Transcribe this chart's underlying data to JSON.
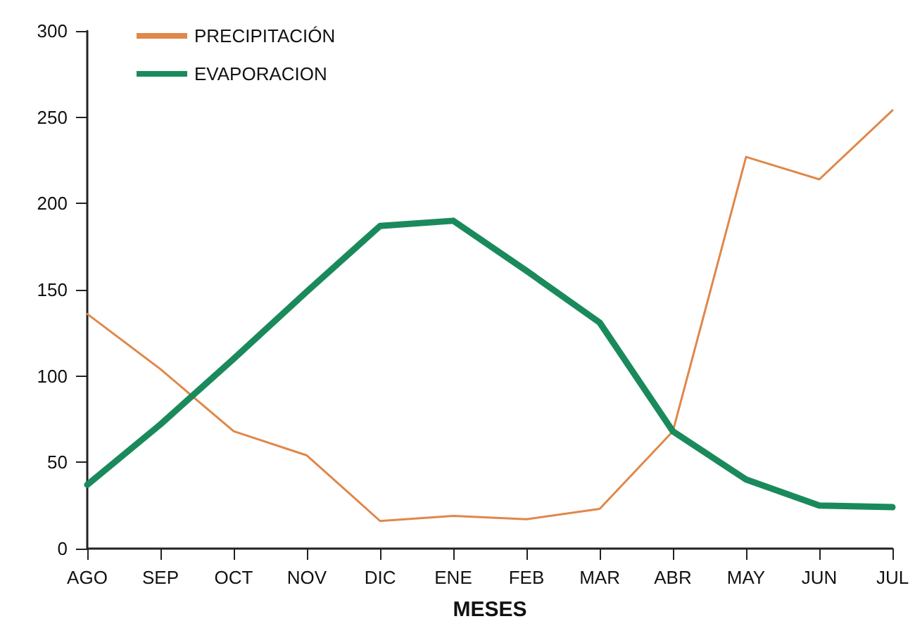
{
  "chart_data": {
    "type": "line",
    "xlabel": "MESES",
    "categories": [
      "AGO",
      "SEP",
      "OCT",
      "NOV",
      "DIC",
      "ENE",
      "FEB",
      "MAR",
      "ABR",
      "MAY",
      "JUN",
      "JUL"
    ],
    "series": [
      {
        "name": "PRECIPITACIÓN",
        "color": "#e0874a",
        "values": [
          136,
          104,
          68,
          54,
          16,
          19,
          17,
          23,
          68,
          227,
          214,
          254
        ]
      },
      {
        "name": "EVAPORACION",
        "color": "#1a8a5c",
        "values": [
          37,
          72,
          110,
          149,
          187,
          190,
          161,
          131,
          68,
          40,
          25,
          24
        ]
      }
    ],
    "ylim": [
      0,
      300
    ],
    "yticks": [
      0,
      50,
      100,
      150,
      200,
      250,
      300
    ],
    "grid": false,
    "legend": "top left",
    "marker": "none",
    "line_style": "solid"
  }
}
